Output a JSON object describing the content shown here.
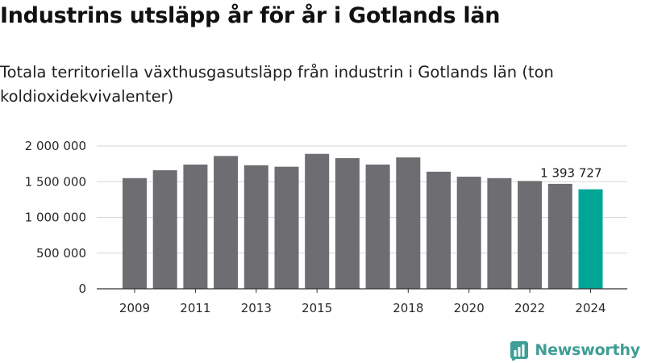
{
  "header": {
    "title": "Industrins utsläpp år för år i Gotlands län",
    "subtitle": "Totala territoriella växthusgasutsläpp från industrin i Gotlands län (ton koldioxidekvivalenter)"
  },
  "brand": {
    "name": "Newsworthy",
    "icon": "newsworthy-logo-icon",
    "color": "#3f9e95"
  },
  "chart_data": {
    "type": "bar",
    "title": "Industrins utsläpp år för år i Gotlands län",
    "subtitle": "Totala territoriella växthusgasutsläpp från industrin i Gotlands län (ton koldioxidekvivalenter)",
    "categories": [
      "2009",
      "2010",
      "2011",
      "2012",
      "2013",
      "2014",
      "2015",
      "2016",
      "2017",
      "2018",
      "2019",
      "2020",
      "2021",
      "2022",
      "2023",
      "2024"
    ],
    "values": [
      1550000,
      1660000,
      1740000,
      1860000,
      1730000,
      1710000,
      1890000,
      1830000,
      1740000,
      1840000,
      1640000,
      1570000,
      1550000,
      1510000,
      1470000,
      1393727
    ],
    "x_tick_labels": [
      "2009",
      "2011",
      "2013",
      "2015",
      "2018",
      "2020",
      "2022",
      "2024"
    ],
    "y_ticks": [
      0,
      500000,
      1000000,
      1500000,
      2000000
    ],
    "y_tick_labels": [
      "0",
      "500 000",
      "1 000 000",
      "1 500 000",
      "2 000 000"
    ],
    "ylim": [
      0,
      2000000
    ],
    "grid": true,
    "highlight_index": 15,
    "highlight_label": "1 393 727",
    "colors": {
      "bar": "#6e6d71",
      "highlight": "#00a596",
      "grid": "#d6d6d6",
      "axis": "#333333"
    },
    "xlabel": "",
    "ylabel": ""
  }
}
